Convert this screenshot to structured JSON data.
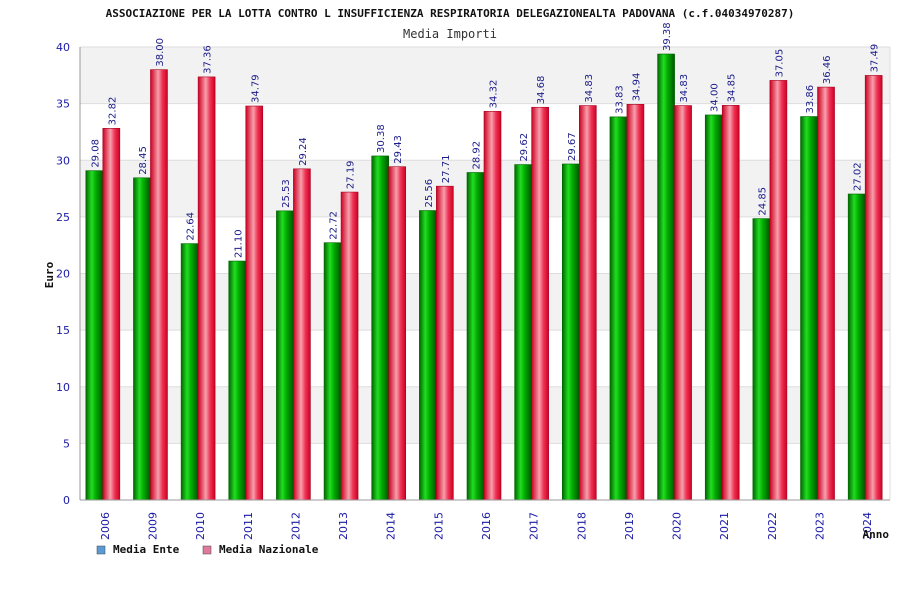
{
  "chart_data": {
    "type": "bar",
    "title": "ASSOCIAZIONE PER LA LOTTA CONTRO L INSUFFICIENZA RESPIRATORIA DELEGAZIONEALTA PADOVANA (c.f.04034970287)",
    "subtitle": "Media Importi",
    "xlabel": "Anno",
    "ylabel": "Euro",
    "ylim": [
      0,
      40
    ],
    "yticks": [
      "0",
      "5",
      "10",
      "15",
      "20",
      "25",
      "30",
      "35",
      "40"
    ],
    "grid": true,
    "legend_position": "bottom-left",
    "categories": [
      "2006",
      "2009",
      "2010",
      "2011",
      "2012",
      "2013",
      "2014",
      "2015",
      "2016",
      "2017",
      "2018",
      "2019",
      "2020",
      "2021",
      "2022",
      "2023",
      "2024"
    ],
    "series": [
      {
        "name": "Media Ente",
        "color": "#00b000",
        "legend_color": "#5b9bd5",
        "values": [
          29.08,
          28.45,
          22.64,
          21.1,
          25.53,
          22.72,
          30.38,
          25.56,
          28.92,
          29.62,
          29.67,
          33.83,
          39.38,
          34.0,
          24.85,
          33.86,
          27.02
        ],
        "labels": [
          "29.08",
          "28.45",
          "22.64",
          "21.10",
          "25.53",
          "22.72",
          "30.38",
          "25.56",
          "28.92",
          "29.62",
          "29.67",
          "33.83",
          "39.38",
          "34.00",
          "24.85",
          "33.86",
          "27.02"
        ]
      },
      {
        "name": "Media Nazionale",
        "color": "#ee1133",
        "legend_color": "#e07a9a",
        "values": [
          32.82,
          38.0,
          37.36,
          34.79,
          29.24,
          27.19,
          29.43,
          27.71,
          34.32,
          34.68,
          34.83,
          34.94,
          34.83,
          34.85,
          37.05,
          36.46,
          37.49
        ],
        "labels": [
          "32.82",
          "38.00",
          "37.36",
          "34.79",
          "29.24",
          "27.19",
          "29.43",
          "27.71",
          "34.32",
          "34.68",
          "34.83",
          "34.94",
          "34.83",
          "34.85",
          "37.05",
          "36.46",
          "37.49"
        ]
      }
    ]
  }
}
